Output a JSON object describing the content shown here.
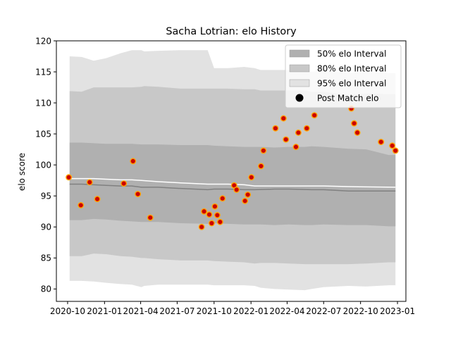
{
  "chart_data": {
    "type": "scatter",
    "title": "Sacha Lotrian: elo History",
    "xlabel": "",
    "ylabel": "elo score",
    "xlim": [
      "2020-09-03",
      "2023-01-22"
    ],
    "ylim": [
      78,
      120
    ],
    "x_ticks": [
      {
        "date": "2020-10-01",
        "label": "2020-10"
      },
      {
        "date": "2021-01-01",
        "label": "2021-01"
      },
      {
        "date": "2021-04-01",
        "label": "2021-04"
      },
      {
        "date": "2021-07-01",
        "label": "2021-07"
      },
      {
        "date": "2021-10-01",
        "label": "2021-10"
      },
      {
        "date": "2022-01-01",
        "label": "2022-01"
      },
      {
        "date": "2022-04-01",
        "label": "2022-04"
      },
      {
        "date": "2022-07-01",
        "label": "2022-07"
      },
      {
        "date": "2022-10-01",
        "label": "2022-10"
      },
      {
        "date": "2023-01-01",
        "label": "2023-01"
      }
    ],
    "y_ticks": [
      80,
      85,
      90,
      95,
      100,
      105,
      110,
      115,
      120
    ],
    "grid": false,
    "legend": {
      "position": "top-right",
      "entries": [
        {
          "label": "50% elo Interval",
          "color": "#b0b0b0",
          "kind": "patch"
        },
        {
          "label": "80% elo Interval",
          "color": "#c8c8c8",
          "kind": "patch"
        },
        {
          "label": "95% elo Interval",
          "color": "#e2e2e2",
          "kind": "patch"
        },
        {
          "label": "Post Match elo",
          "color": "#000000",
          "kind": "marker"
        }
      ]
    },
    "bands": [
      {
        "name": "95% elo Interval",
        "color": "#e2e2e2",
        "x": [
          "2020-10-06",
          "2020-11-05",
          "2020-12-05",
          "2021-01-05",
          "2021-02-10",
          "2021-03-10",
          "2021-04-03",
          "2021-04-10",
          "2021-05-15",
          "2021-07-10",
          "2021-09-15",
          "2021-10-01",
          "2021-11-05",
          "2021-12-15",
          "2022-01-10",
          "2022-01-25",
          "2022-03-01",
          "2022-04-05",
          "2022-05-15",
          "2022-06-01",
          "2022-07-01",
          "2022-09-01",
          "2022-10-15",
          "2022-12-10",
          "2022-12-27"
        ],
        "lower": [
          81.3,
          81.3,
          81.2,
          81.0,
          80.8,
          80.7,
          80.3,
          80.5,
          80.7,
          80.7,
          80.7,
          80.6,
          80.6,
          80.6,
          80.5,
          80.2,
          80.0,
          79.9,
          79.8,
          80.0,
          80.3,
          80.5,
          80.4,
          80.6,
          80.6
        ],
        "upper": [
          117.5,
          117.4,
          116.8,
          117.2,
          118.0,
          118.5,
          118.5,
          118.3,
          118.4,
          118.5,
          118.5,
          115.6,
          115.6,
          115.8,
          115.6,
          115.3,
          115.3,
          115.3,
          115.2,
          115.0,
          115.2,
          114.8,
          115.0,
          114.8,
          114.8
        ]
      },
      {
        "name": "80% elo Interval",
        "color": "#c8c8c8",
        "x": [
          "2020-10-06",
          "2020-11-05",
          "2020-12-05",
          "2021-01-05",
          "2021-02-10",
          "2021-03-10",
          "2021-04-03",
          "2021-04-10",
          "2021-05-15",
          "2021-07-10",
          "2021-09-15",
          "2021-10-01",
          "2021-11-05",
          "2021-12-15",
          "2022-01-10",
          "2022-01-25",
          "2022-03-01",
          "2022-04-05",
          "2022-05-15",
          "2022-06-01",
          "2022-07-01",
          "2022-09-01",
          "2022-10-15",
          "2022-12-10",
          "2022-12-27"
        ],
        "lower": [
          85.3,
          85.3,
          85.7,
          85.6,
          85.3,
          85.2,
          85.0,
          85.0,
          84.8,
          84.6,
          84.6,
          84.5,
          84.4,
          84.3,
          84.1,
          84.2,
          84.2,
          84.1,
          84.0,
          84.0,
          84.0,
          84.0,
          84.1,
          84.3,
          84.3
        ],
        "upper": [
          111.9,
          111.8,
          112.5,
          112.5,
          112.5,
          112.5,
          112.6,
          112.7,
          112.6,
          112.3,
          112.3,
          112.3,
          112.3,
          112.2,
          112.2,
          112.0,
          112.0,
          112.0,
          112.0,
          111.8,
          111.8,
          111.3,
          111.5,
          111.4,
          111.4
        ]
      },
      {
        "name": "50% elo Interval",
        "color": "#b0b0b0",
        "x": [
          "2020-10-06",
          "2020-11-05",
          "2020-12-05",
          "2021-01-05",
          "2021-02-10",
          "2021-03-10",
          "2021-04-03",
          "2021-04-10",
          "2021-05-15",
          "2021-07-10",
          "2021-09-15",
          "2021-10-01",
          "2021-11-05",
          "2021-12-15",
          "2022-01-10",
          "2022-01-25",
          "2022-03-01",
          "2022-04-05",
          "2022-05-15",
          "2022-06-01",
          "2022-07-01",
          "2022-09-01",
          "2022-10-15",
          "2022-12-10",
          "2022-12-27"
        ],
        "lower": [
          91.1,
          91.1,
          91.3,
          91.2,
          91.0,
          90.9,
          90.8,
          90.8,
          90.8,
          90.6,
          90.5,
          90.6,
          90.5,
          90.4,
          90.4,
          90.4,
          90.3,
          90.4,
          90.3,
          90.3,
          90.4,
          90.3,
          90.3,
          90.1,
          90.1
        ],
        "upper": [
          103.6,
          103.6,
          103.5,
          103.4,
          103.4,
          103.4,
          103.3,
          103.3,
          103.3,
          103.2,
          103.2,
          103.1,
          103.0,
          102.9,
          102.9,
          102.9,
          102.8,
          102.9,
          102.9,
          103.0,
          102.9,
          102.6,
          102.5,
          101.6,
          101.6
        ]
      }
    ],
    "series": [
      {
        "kind": "line",
        "color": "#808080",
        "x": [
          "2020-10-06",
          "2020-11-05",
          "2020-12-05",
          "2021-01-05",
          "2021-02-10",
          "2021-03-10",
          "2021-04-03",
          "2021-05-15",
          "2021-07-10",
          "2021-09-15",
          "2021-10-01",
          "2021-11-05",
          "2021-12-15",
          "2022-01-10",
          "2022-03-01",
          "2022-04-05",
          "2022-06-01",
          "2022-07-01",
          "2022-09-01",
          "2022-12-27"
        ],
        "y": [
          96.9,
          96.9,
          96.8,
          96.7,
          96.6,
          96.6,
          96.4,
          96.4,
          96.2,
          96.0,
          96.1,
          96.1,
          96.0,
          96.0,
          96.1,
          96.1,
          96.0,
          96.0,
          95.8,
          95.8
        ]
      },
      {
        "kind": "line",
        "color": "#ffffff",
        "x": [
          "2020-10-06",
          "2020-11-05",
          "2020-12-05",
          "2021-01-05",
          "2021-02-10",
          "2021-03-10",
          "2021-04-03",
          "2021-05-15",
          "2021-07-10",
          "2021-09-15",
          "2021-10-01",
          "2021-11-05",
          "2021-12-15",
          "2022-01-10",
          "2022-03-01",
          "2022-04-05",
          "2022-06-01",
          "2022-07-01",
          "2022-09-01",
          "2022-12-27"
        ],
        "y": [
          97.8,
          97.8,
          97.8,
          97.7,
          97.6,
          97.6,
          97.5,
          97.3,
          97.1,
          96.9,
          96.9,
          96.9,
          96.8,
          96.6,
          96.6,
          96.6,
          96.6,
          96.6,
          96.5,
          96.4
        ]
      },
      {
        "name": "Post Match elo",
        "kind": "scatter",
        "color": "#cc0000",
        "edgecolor": "#ffa500",
        "points": [
          {
            "x": "2020-10-04",
            "y": 98.0
          },
          {
            "x": "2020-11-03",
            "y": 93.5
          },
          {
            "x": "2020-11-25",
            "y": 97.2
          },
          {
            "x": "2020-12-14",
            "y": 94.5
          },
          {
            "x": "2021-02-18",
            "y": 97.0
          },
          {
            "x": "2021-03-13",
            "y": 100.6
          },
          {
            "x": "2021-03-25",
            "y": 95.3
          },
          {
            "x": "2021-04-25",
            "y": 91.5
          },
          {
            "x": "2021-08-31",
            "y": 90.0
          },
          {
            "x": "2021-09-06",
            "y": 92.5
          },
          {
            "x": "2021-09-19",
            "y": 92.0
          },
          {
            "x": "2021-09-25",
            "y": 90.6
          },
          {
            "x": "2021-10-03",
            "y": 93.3
          },
          {
            "x": "2021-10-09",
            "y": 91.9
          },
          {
            "x": "2021-10-16",
            "y": 90.8
          },
          {
            "x": "2021-10-22",
            "y": 94.6
          },
          {
            "x": "2021-11-20",
            "y": 96.7
          },
          {
            "x": "2021-11-26",
            "y": 96.0
          },
          {
            "x": "2021-12-17",
            "y": 94.2
          },
          {
            "x": "2021-12-24",
            "y": 95.2
          },
          {
            "x": "2022-01-02",
            "y": 98.0
          },
          {
            "x": "2022-01-26",
            "y": 99.8
          },
          {
            "x": "2022-02-01",
            "y": 102.3
          },
          {
            "x": "2022-03-03",
            "y": 105.9
          },
          {
            "x": "2022-03-23",
            "y": 107.5
          },
          {
            "x": "2022-03-29",
            "y": 104.1
          },
          {
            "x": "2022-04-23",
            "y": 102.9
          },
          {
            "x": "2022-04-29",
            "y": 105.2
          },
          {
            "x": "2022-05-20",
            "y": 105.9
          },
          {
            "x": "2022-06-08",
            "y": 108.0
          },
          {
            "x": "2022-09-08",
            "y": 109.1
          },
          {
            "x": "2022-09-15",
            "y": 106.7
          },
          {
            "x": "2022-09-23",
            "y": 105.2
          },
          {
            "x": "2022-11-21",
            "y": 103.7
          },
          {
            "x": "2022-12-19",
            "y": 103.1
          },
          {
            "x": "2022-12-27",
            "y": 102.3
          }
        ]
      }
    ]
  }
}
